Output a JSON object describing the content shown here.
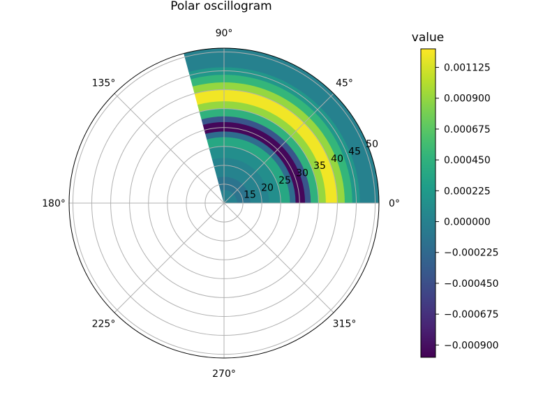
{
  "chart_data": {
    "type": "heatmap",
    "projection": "polar",
    "title": "Polar oscillogram",
    "theta_ticks": [
      {
        "deg": 0,
        "label": "0°"
      },
      {
        "deg": 45,
        "label": "45°"
      },
      {
        "deg": 90,
        "label": "90°"
      },
      {
        "deg": 135,
        "label": "135°"
      },
      {
        "deg": 180,
        "label": "180°"
      },
      {
        "deg": 225,
        "label": "225°"
      },
      {
        "deg": 270,
        "label": "270°"
      },
      {
        "deg": 315,
        "label": "315°"
      }
    ],
    "r_ticks": [
      15,
      20,
      25,
      30,
      35,
      40,
      45,
      50
    ],
    "r_tick_labels": [
      "15",
      "20",
      "25",
      "30",
      "35",
      "40",
      "45",
      "50"
    ],
    "r_range": [
      10,
      51
    ],
    "theta_data_range_deg": [
      0,
      105
    ],
    "grid": true,
    "colormap": "viridis",
    "colorbar": {
      "label": "value",
      "range": [
        -0.00099,
        0.00126
      ],
      "ticks": [
        -0.0009,
        -0.000675,
        -0.00045,
        -0.000225,
        0.0,
        0.000225,
        0.00045,
        0.000675,
        0.0009,
        0.001125
      ],
      "tick_labels": [
        "−0.000900",
        "−0.000675",
        "−0.000450",
        "−0.000225",
        "0.000000",
        "0.000225",
        "0.000450",
        "0.000675",
        "0.000900",
        "0.001125"
      ]
    },
    "field_bands": [
      {
        "r_from": 10,
        "r_to": 13.5,
        "value": 0.0
      },
      {
        "r_from": 13.5,
        "r_to": 17,
        "value": -0.00012
      },
      {
        "r_from": 17,
        "r_to": 22,
        "value": 2e-05
      },
      {
        "r_from": 22,
        "r_to": 25,
        "value": 0.00012
      },
      {
        "r_from": 25,
        "r_to": 27.5,
        "value": 0.00035
      },
      {
        "r_from": 27.5,
        "r_to": 29,
        "value": -0.0002
      },
      {
        "r_from": 29,
        "r_to": 31.5,
        "value": -0.00095
      },
      {
        "r_from": 31.5,
        "r_to": 33,
        "value": -0.0004
      },
      {
        "r_from": 33,
        "r_to": 35,
        "value": 0.00045
      },
      {
        "r_from": 35,
        "r_to": 37,
        "value": 0.0009
      },
      {
        "r_from": 37,
        "r_to": 40,
        "value": 0.00122
      },
      {
        "r_from": 40,
        "r_to": 42,
        "value": 0.0009
      },
      {
        "r_from": 42,
        "r_to": 44,
        "value": 0.0005
      },
      {
        "r_from": 44,
        "r_to": 46,
        "value": 0.0002
      },
      {
        "r_from": 46,
        "r_to": 51,
        "value": 0.0
      }
    ]
  }
}
